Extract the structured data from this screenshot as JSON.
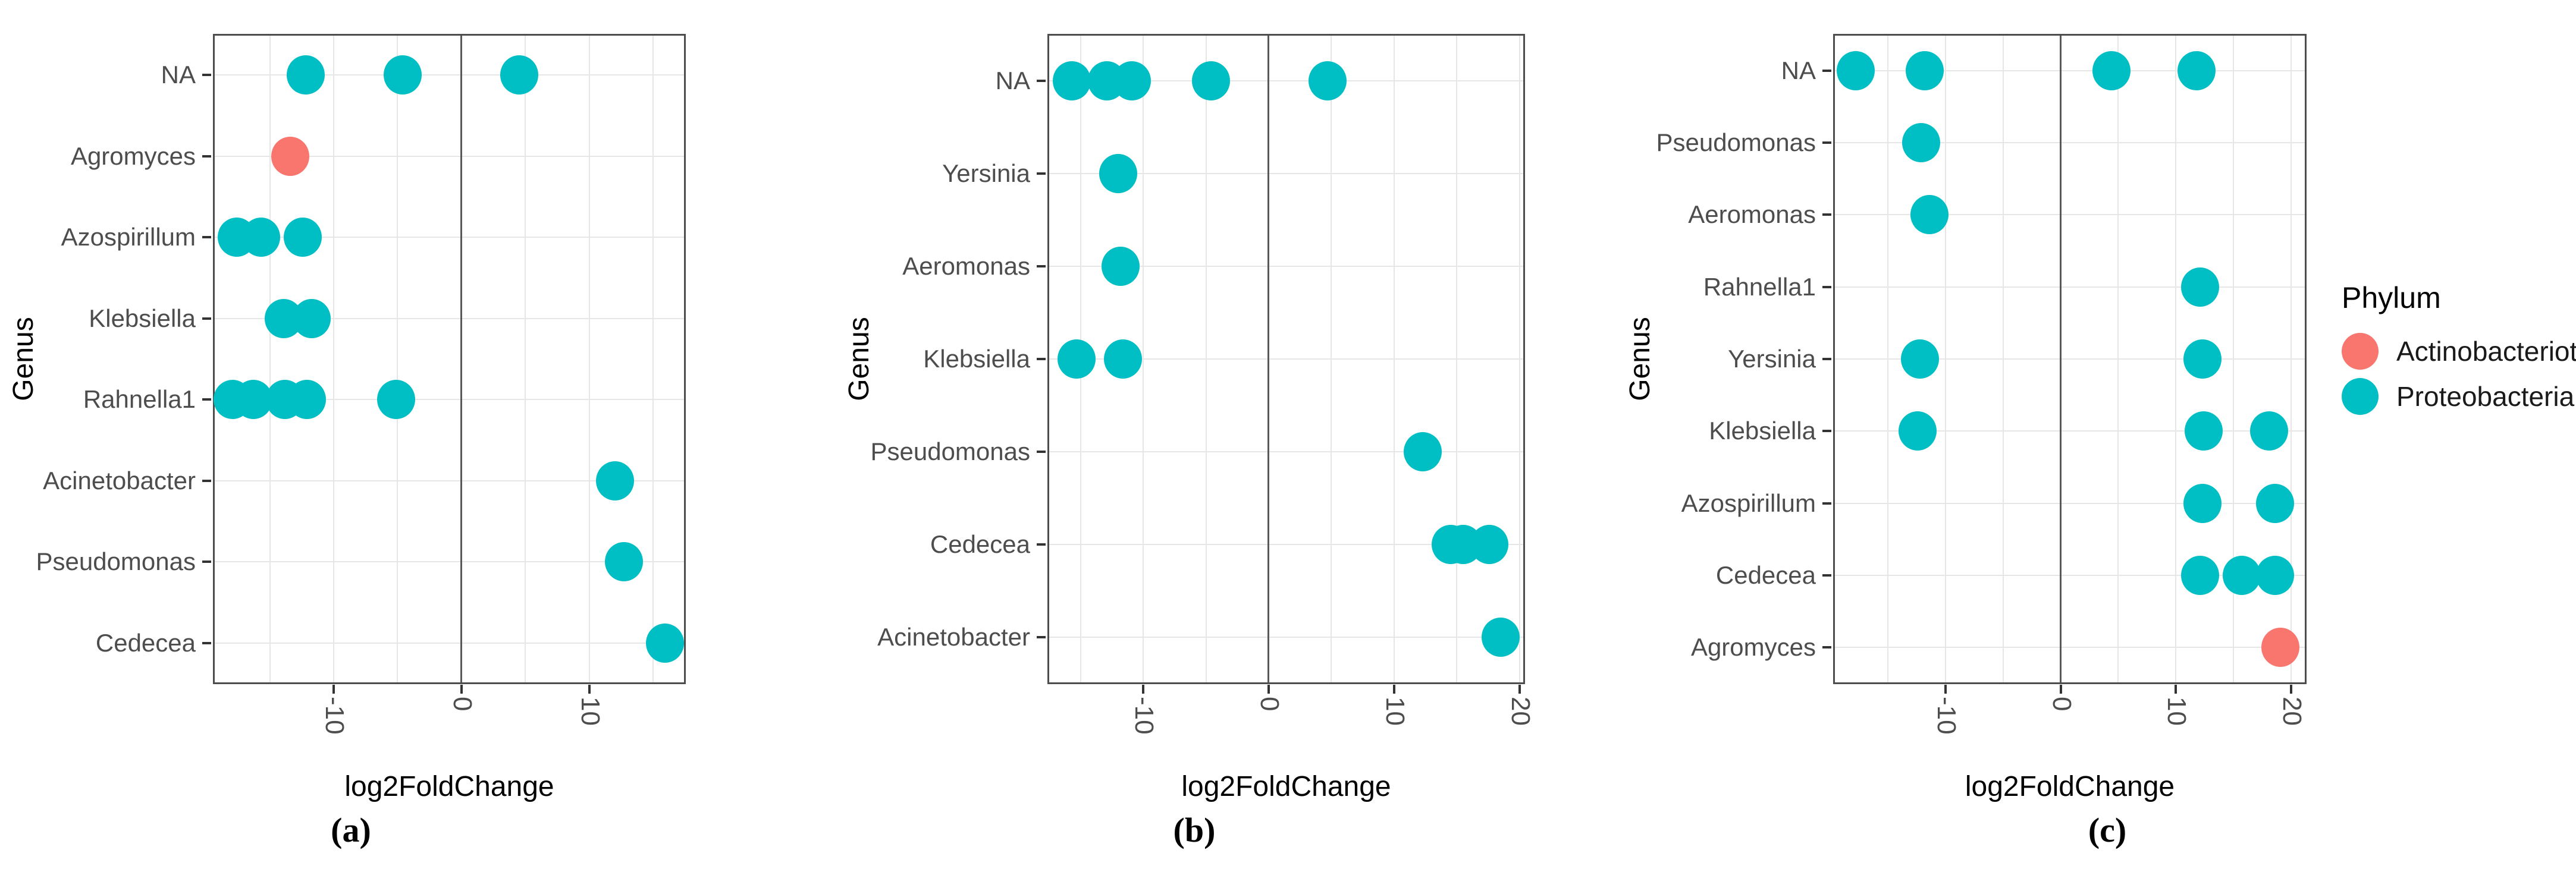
{
  "legend": {
    "title": "Phylum",
    "entries": [
      {
        "label": "Actinobacteriota",
        "color": "#F8766D"
      },
      {
        "label": "Proteobacteria",
        "color": "#00BFC4"
      }
    ]
  },
  "style": {
    "point_red": "#F8766D",
    "point_teal": "#00BFC4",
    "grid_color": "#E6E6E6",
    "panel_border_color": "#4D4D4D",
    "zero_line_color": "#595959",
    "tick_color": "#333333",
    "axis_text_color": "#4D4D4D"
  },
  "chart_data": [
    {
      "type": "scatter",
      "letter": "(a)",
      "xlabel": "log2FoldChange",
      "ylabel": "Genus",
      "xlim": [
        -19.4,
        17.5
      ],
      "xticks": [
        -10,
        0,
        10
      ],
      "grid": "vertical every 5 units, horizontal per category, dark vline at 0",
      "legend_position": "right of figure (shared)",
      "categories": [
        "NA",
        "Agromyces",
        "Azospirillum",
        "Klebsiella",
        "Rahnella1",
        "Acinetobacter",
        "Pseudomonas",
        "Cedecea"
      ],
      "series": [
        {
          "name": "Actinobacteriota",
          "color": "#F8766D",
          "points": [
            {
              "genus": "Agromyces",
              "x": -13.4
            }
          ]
        },
        {
          "name": "Proteobacteria",
          "color": "#00BFC4",
          "points": [
            {
              "genus": "NA",
              "x": -12.2
            },
            {
              "genus": "NA",
              "x": -4.6
            },
            {
              "genus": "NA",
              "x": 4.5
            },
            {
              "genus": "Azospirillum",
              "x": -17.6
            },
            {
              "genus": "Azospirillum",
              "x": -15.7
            },
            {
              "genus": "Azospirillum",
              "x": -12.4
            },
            {
              "genus": "Klebsiella",
              "x": -13.9
            },
            {
              "genus": "Klebsiella",
              "x": -11.7
            },
            {
              "genus": "Rahnella1",
              "x": -17.9
            },
            {
              "genus": "Rahnella1",
              "x": -16.3
            },
            {
              "genus": "Rahnella1",
              "x": -13.8
            },
            {
              "genus": "Rahnella1",
              "x": -12.1
            },
            {
              "genus": "Rahnella1",
              "x": -5.1
            },
            {
              "genus": "Acinetobacter",
              "x": 12.0
            },
            {
              "genus": "Pseudomonas",
              "x": 12.7
            },
            {
              "genus": "Cedecea",
              "x": 15.9
            }
          ]
        }
      ]
    },
    {
      "type": "scatter",
      "letter": "(b)",
      "xlabel": "log2FoldChange",
      "ylabel": "Genus",
      "xlim": [
        -17.6,
        20.4
      ],
      "xticks": [
        -10,
        0,
        10,
        20
      ],
      "grid": "vertical every 5 units, horizontal per category, dark vline at 0",
      "legend_position": "right of figure (shared)",
      "categories": [
        "NA",
        "Yersinia",
        "Aeromonas",
        "Klebsiella",
        "Pseudomonas",
        "Cedecea",
        "Acinetobacter"
      ],
      "series": [
        {
          "name": "Actinobacteriota",
          "color": "#F8766D",
          "points": []
        },
        {
          "name": "Proteobacteria",
          "color": "#00BFC4",
          "points": [
            {
              "genus": "NA",
              "x": -15.7
            },
            {
              "genus": "NA",
              "x": -12.9
            },
            {
              "genus": "NA",
              "x": -10.9
            },
            {
              "genus": "NA",
              "x": -4.6
            },
            {
              "genus": "NA",
              "x": 4.7
            },
            {
              "genus": "Yersinia",
              "x": -12.0
            },
            {
              "genus": "Aeromonas",
              "x": -11.8
            },
            {
              "genus": "Klebsiella",
              "x": -15.3
            },
            {
              "genus": "Klebsiella",
              "x": -11.6
            },
            {
              "genus": "Pseudomonas",
              "x": 12.3
            },
            {
              "genus": "Cedecea",
              "x": 14.5
            },
            {
              "genus": "Cedecea",
              "x": 15.5
            },
            {
              "genus": "Cedecea",
              "x": 17.6
            },
            {
              "genus": "Acinetobacter",
              "x": 18.5
            }
          ]
        }
      ]
    },
    {
      "type": "scatter",
      "letter": "(c)",
      "xlabel": "log2FoldChange",
      "ylabel": "Genus",
      "xlim": [
        -19.7,
        21.3
      ],
      "xticks": [
        -10,
        0,
        10,
        20
      ],
      "grid": "vertical every 5 units, horizontal per category, dark vline at 0",
      "legend_position": "right of panel",
      "categories": [
        "NA",
        "Pseudomonas",
        "Aeromonas",
        "Rahnella1",
        "Yersinia",
        "Klebsiella",
        "Azospirillum",
        "Cedecea",
        "Agromyces"
      ],
      "series": [
        {
          "name": "Actinobacteriota",
          "color": "#F8766D",
          "points": [
            {
              "genus": "Agromyces",
              "x": 19.1
            }
          ]
        },
        {
          "name": "Proteobacteria",
          "color": "#00BFC4",
          "points": [
            {
              "genus": "NA",
              "x": -17.8
            },
            {
              "genus": "NA",
              "x": -11.8
            },
            {
              "genus": "NA",
              "x": 4.4
            },
            {
              "genus": "NA",
              "x": 11.8
            },
            {
              "genus": "Pseudomonas",
              "x": -12.1
            },
            {
              "genus": "Aeromonas",
              "x": -11.4
            },
            {
              "genus": "Rahnella1",
              "x": 12.1
            },
            {
              "genus": "Yersinia",
              "x": -12.2
            },
            {
              "genus": "Yersinia",
              "x": 12.3
            },
            {
              "genus": "Klebsiella",
              "x": -12.4
            },
            {
              "genus": "Klebsiella",
              "x": 12.4
            },
            {
              "genus": "Klebsiella",
              "x": 18.1
            },
            {
              "genus": "Azospirillum",
              "x": 12.3
            },
            {
              "genus": "Azospirillum",
              "x": 18.6
            },
            {
              "genus": "Cedecea",
              "x": 12.1
            },
            {
              "genus": "Cedecea",
              "x": 15.7
            },
            {
              "genus": "Cedecea",
              "x": 18.6
            }
          ]
        }
      ]
    }
  ]
}
